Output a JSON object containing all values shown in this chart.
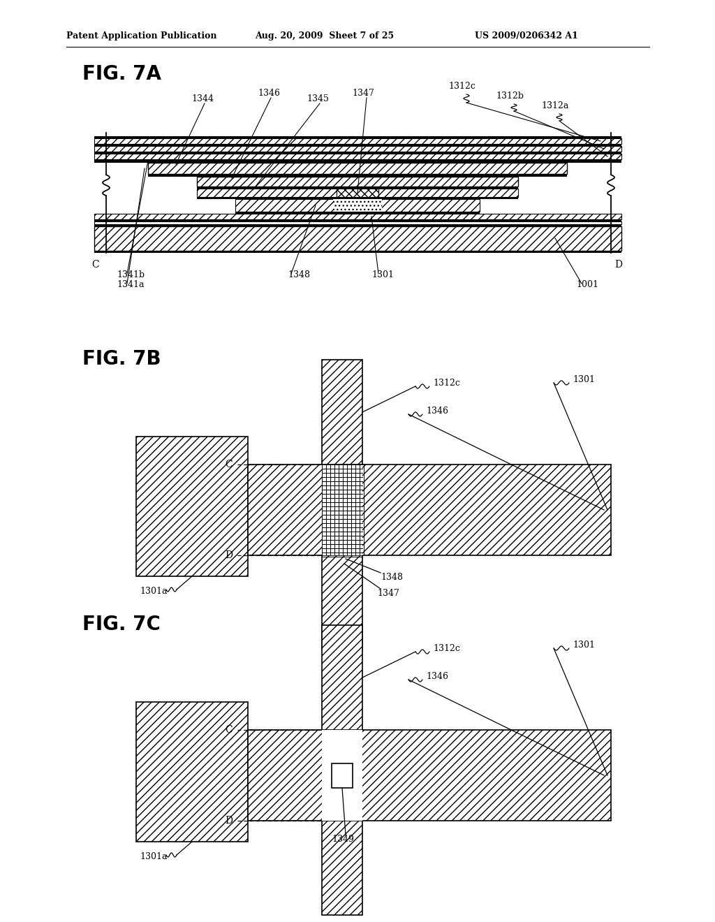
{
  "header_left": "Patent Application Publication",
  "header_mid": "Aug. 20, 2009  Sheet 7 of 25",
  "header_right": "US 2009/0206342 A1",
  "fig7a_label": "FIG. 7A",
  "fig7b_label": "FIG. 7B",
  "fig7c_label": "FIG. 7C",
  "background_color": "#ffffff",
  "line_color": "#000000"
}
